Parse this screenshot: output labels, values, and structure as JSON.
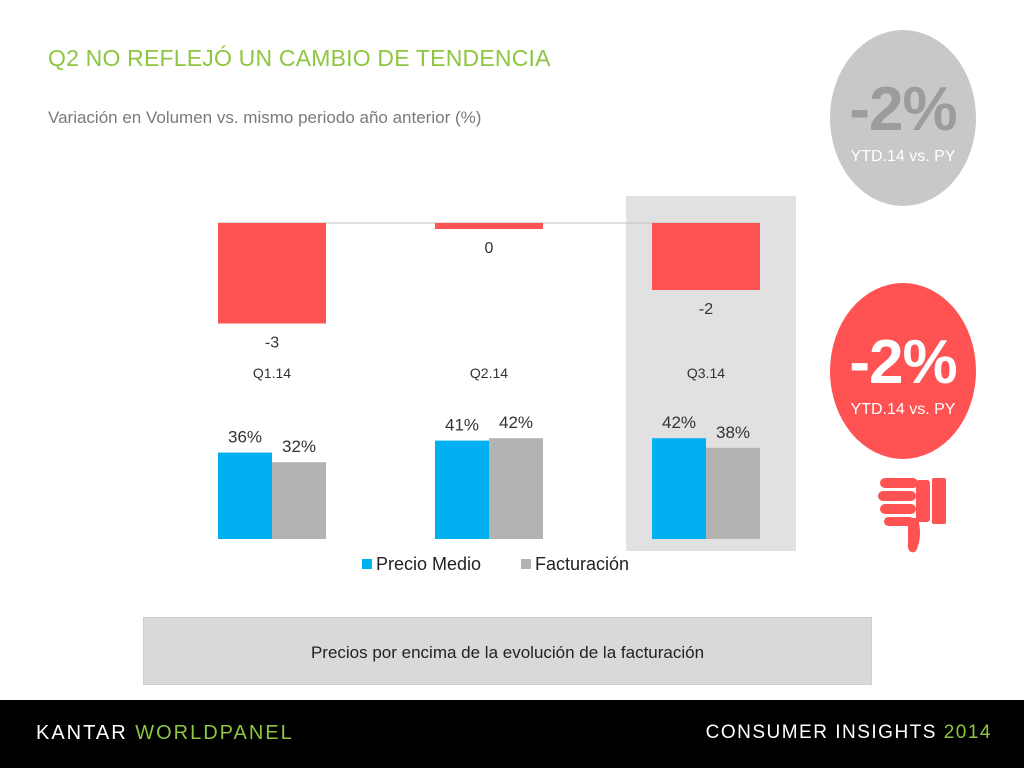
{
  "title": "Q2 NO REFLEJÓ UN CAMBIO DE TENDENCIA",
  "subtitle": "Variación en Volumen vs. mismo periodo año anterior (%)",
  "footnote": "Precios por encima de la evolución de la facturación",
  "ytd_grey": {
    "value": "-2%",
    "label": "YTD.14 vs. PY"
  },
  "ytd_red": {
    "value": "-2%",
    "label": "YTD.14 vs. PY"
  },
  "footer": {
    "brand_left": "KANTAR ",
    "brand_right": "WORLDPANEL",
    "tagline": "CONSUMER INSIGHTS ",
    "year": "2014"
  },
  "colors": {
    "volume_bar": "#ff5252",
    "precio": "#00b0f0",
    "facturacion": "#b3b3b3",
    "title": "#8dc63f"
  },
  "icons": {
    "thumb": "thumbs-down-icon"
  },
  "chart_data": [
    {
      "type": "bar",
      "categories": [
        "Q1.14",
        "Q2.14",
        "Q3.14"
      ],
      "values": [
        -3,
        0,
        -2
      ],
      "ylim": [
        -3.2,
        0
      ],
      "highlight_category": "Q3.14"
    },
    {
      "type": "bar",
      "categories": [
        "Q1.14",
        "Q2.14",
        "Q3.14"
      ],
      "series": [
        {
          "name": "Precio Medio",
          "values": [
            36,
            41,
            42
          ],
          "labels": [
            "36%",
            "41%",
            "42%"
          ]
        },
        {
          "name": "Facturación",
          "values": [
            32,
            42,
            38
          ],
          "labels": [
            "32%",
            "42%",
            "38%"
          ]
        }
      ],
      "legend": "bottom"
    }
  ]
}
